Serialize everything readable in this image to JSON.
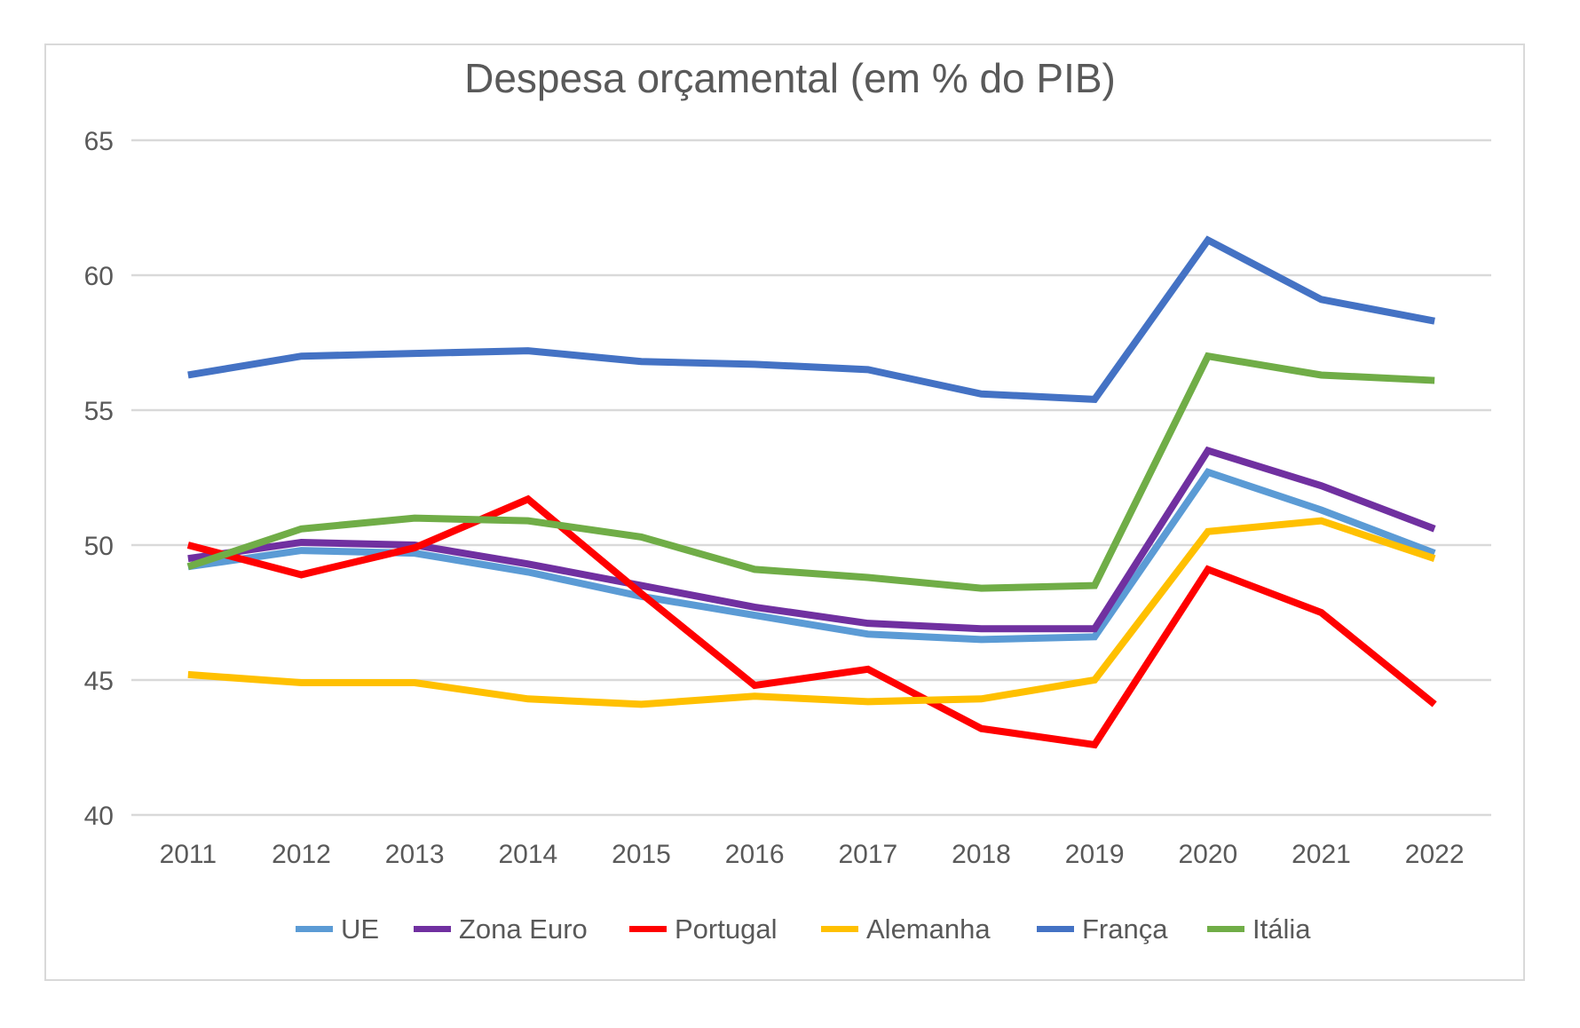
{
  "chart_data": {
    "type": "line",
    "title": "Despesa orçamental (em % do PIB)",
    "xlabel": "",
    "ylabel": "",
    "categories": [
      "2011",
      "2012",
      "2013",
      "2014",
      "2015",
      "2016",
      "2017",
      "2018",
      "2019",
      "2020",
      "2021",
      "2022"
    ],
    "ylim": [
      40,
      65
    ],
    "yticks": [
      "40",
      "45",
      "50",
      "55",
      "60",
      "65"
    ],
    "grid": true,
    "legend_position": "bottom",
    "series": [
      {
        "name": "UE",
        "color": "#5b9bd5",
        "values": [
          49.2,
          49.8,
          49.7,
          49.0,
          48.1,
          47.4,
          46.7,
          46.5,
          46.6,
          52.7,
          51.3,
          49.7
        ]
      },
      {
        "name": "Zona Euro",
        "color": "#7030a0",
        "values": [
          49.5,
          50.1,
          50.0,
          49.3,
          48.5,
          47.7,
          47.1,
          46.9,
          46.9,
          53.5,
          52.2,
          50.6
        ]
      },
      {
        "name": "Portugal",
        "color": "#ff0000",
        "values": [
          50.0,
          48.9,
          49.9,
          51.7,
          48.2,
          44.8,
          45.4,
          43.2,
          42.6,
          49.1,
          47.5,
          44.1
        ]
      },
      {
        "name": "Alemanha",
        "color": "#ffc000",
        "values": [
          45.2,
          44.9,
          44.9,
          44.3,
          44.1,
          44.4,
          44.2,
          44.3,
          45.0,
          50.5,
          50.9,
          49.5
        ]
      },
      {
        "name": "França",
        "color": "#4472c4",
        "values": [
          56.3,
          57.0,
          57.1,
          57.2,
          56.8,
          56.7,
          56.5,
          55.6,
          55.4,
          61.3,
          59.1,
          58.3
        ]
      },
      {
        "name": "Itália",
        "color": "#70ad47",
        "values": [
          49.2,
          50.6,
          51.0,
          50.9,
          50.3,
          49.1,
          48.8,
          48.4,
          48.5,
          57.0,
          56.3,
          56.1
        ]
      }
    ]
  }
}
